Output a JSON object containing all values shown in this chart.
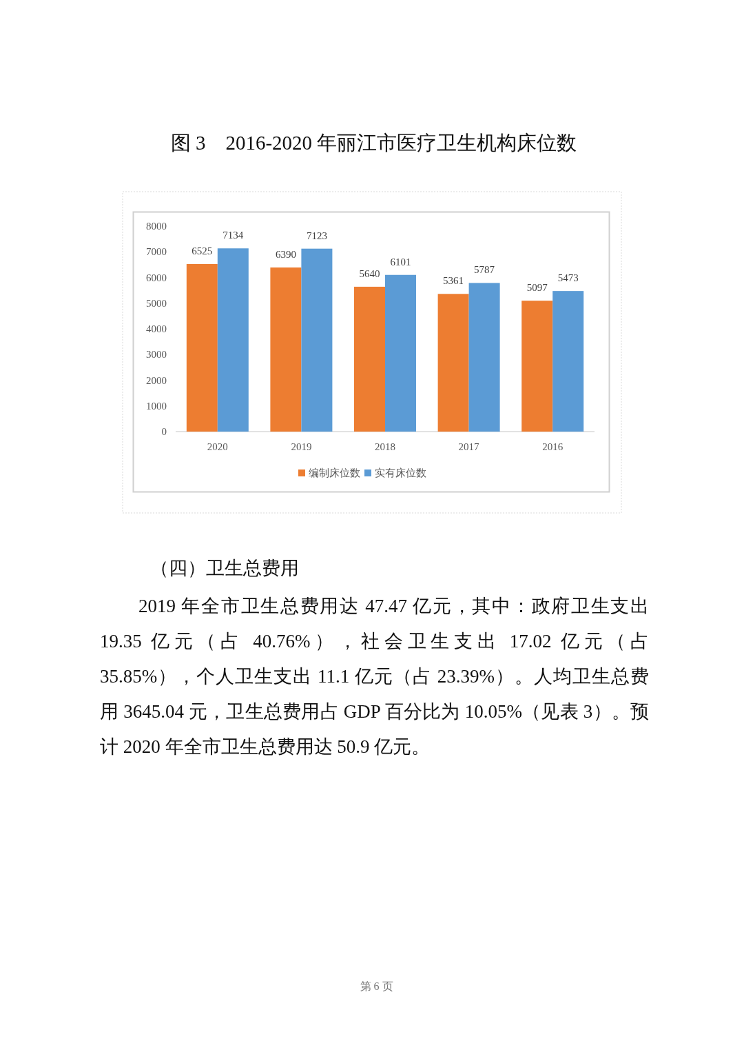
{
  "chart_data": {
    "type": "bar",
    "title": "图 3　2016-2020 年丽江市医疗卫生机构床位数",
    "categories": [
      "2020",
      "2019",
      "2018",
      "2017",
      "2016"
    ],
    "series": [
      {
        "name": "编制床位数",
        "color": "#ed7d31",
        "values": [
          6525,
          6390,
          5640,
          5361,
          5097
        ]
      },
      {
        "name": "实有床位数",
        "color": "#5b9bd5",
        "values": [
          7134,
          7123,
          6101,
          5787,
          5473
        ]
      }
    ],
    "ylim": [
      0,
      8000
    ],
    "yticks": [
      0,
      1000,
      2000,
      3000,
      4000,
      5000,
      6000,
      7000,
      8000
    ],
    "data_labels": true,
    "legend": "bottom",
    "grid": false,
    "annotations": [
      "（四）卫生总费用",
      "2019 年全市卫生总费用达 47.47 亿元，其中：政府卫生支出 19.35 亿元（占 40.76%），社会卫生支出 17.02 亿元（占 35.85%），个人卫生支出 11.1 亿元（占 23.39%）。人均卫生总费用 3645.04 元，卫生总费用占 GDP 百分比为 10.05%（见表 3）。预计 2020 年全市卫生总费用达 50.9 亿元。",
      "第 6 页"
    ]
  }
}
